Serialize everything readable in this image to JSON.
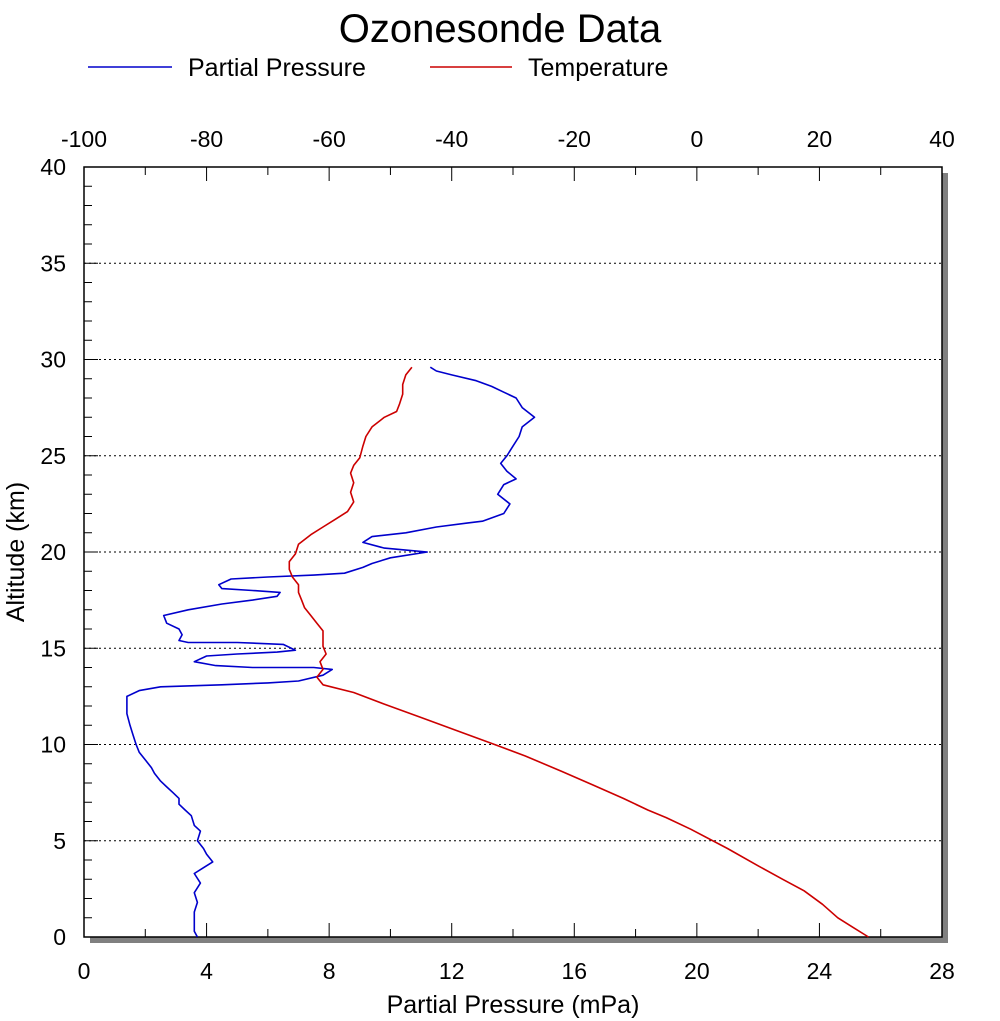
{
  "chart_data": {
    "type": "line",
    "title": "Ozonesonde Data",
    "xlabel": "Partial Pressure (mPa)",
    "ylabel": "Altitude (km)",
    "xlim": [
      0,
      28
    ],
    "x2lim": [
      -100,
      40
    ],
    "ylim": [
      0,
      40
    ],
    "x_ticks": [
      "0",
      "4",
      "8",
      "12",
      "16",
      "20",
      "24",
      "28"
    ],
    "x2_ticks": [
      "-100",
      "-80",
      "-60",
      "-40",
      "-20",
      "0",
      "20",
      "40"
    ],
    "y_ticks": [
      "0",
      "5",
      "10",
      "15",
      "20",
      "25",
      "30",
      "35",
      "40"
    ],
    "grid": "horizontal dotted at major y ticks",
    "legend_position": "top",
    "series": [
      {
        "name": "Partial Pressure",
        "axis": "bottom",
        "color": "#0000cc",
        "points": [
          [
            3.7,
            0
          ],
          [
            3.6,
            0.3
          ],
          [
            3.6,
            0.8
          ],
          [
            3.6,
            1.3
          ],
          [
            3.7,
            1.8
          ],
          [
            3.6,
            2.3
          ],
          [
            3.8,
            2.8
          ],
          [
            3.6,
            3.3
          ],
          [
            3.9,
            3.6
          ],
          [
            4.2,
            3.9
          ],
          [
            4.0,
            4.3
          ],
          [
            3.9,
            4.6
          ],
          [
            3.7,
            5.0
          ],
          [
            3.8,
            5.5
          ],
          [
            3.6,
            5.8
          ],
          [
            3.5,
            6.3
          ],
          [
            3.3,
            6.6
          ],
          [
            3.1,
            6.9
          ],
          [
            3.1,
            7.2
          ],
          [
            2.9,
            7.5
          ],
          [
            2.7,
            7.8
          ],
          [
            2.5,
            8.1
          ],
          [
            2.3,
            8.5
          ],
          [
            2.2,
            8.8
          ],
          [
            2.0,
            9.2
          ],
          [
            1.8,
            9.6
          ],
          [
            1.7,
            10.0
          ],
          [
            1.6,
            10.5
          ],
          [
            1.5,
            11.0
          ],
          [
            1.4,
            11.6
          ],
          [
            1.4,
            12.1
          ],
          [
            1.4,
            12.5
          ],
          [
            1.8,
            12.8
          ],
          [
            2.5,
            13.0
          ],
          [
            4.5,
            13.1
          ],
          [
            6.0,
            13.2
          ],
          [
            7.0,
            13.3
          ],
          [
            7.8,
            13.6
          ],
          [
            8.1,
            13.9
          ],
          [
            7.5,
            14.0
          ],
          [
            5.5,
            14.0
          ],
          [
            4.3,
            14.1
          ],
          [
            3.6,
            14.3
          ],
          [
            4.0,
            14.6
          ],
          [
            5.0,
            14.7
          ],
          [
            6.3,
            14.8
          ],
          [
            6.9,
            14.9
          ],
          [
            6.5,
            15.2
          ],
          [
            5.0,
            15.3
          ],
          [
            3.4,
            15.3
          ],
          [
            3.1,
            15.4
          ],
          [
            3.2,
            15.7
          ],
          [
            3.1,
            16.0
          ],
          [
            2.7,
            16.3
          ],
          [
            2.6,
            16.7
          ],
          [
            3.4,
            17.0
          ],
          [
            4.5,
            17.3
          ],
          [
            5.5,
            17.5
          ],
          [
            6.3,
            17.7
          ],
          [
            6.4,
            17.9
          ],
          [
            5.5,
            18.0
          ],
          [
            4.5,
            18.1
          ],
          [
            4.4,
            18.3
          ],
          [
            4.8,
            18.6
          ],
          [
            6.0,
            18.7
          ],
          [
            7.5,
            18.8
          ],
          [
            8.5,
            18.9
          ],
          [
            9.1,
            19.2
          ],
          [
            9.4,
            19.4
          ],
          [
            10.0,
            19.7
          ],
          [
            11.2,
            20.0
          ],
          [
            10.5,
            20.1
          ],
          [
            9.8,
            20.2
          ],
          [
            9.1,
            20.5
          ],
          [
            9.4,
            20.8
          ],
          [
            10.5,
            21.0
          ],
          [
            11.5,
            21.3
          ],
          [
            12.5,
            21.5
          ],
          [
            13.0,
            21.6
          ],
          [
            13.7,
            22.0
          ],
          [
            13.9,
            22.5
          ],
          [
            13.5,
            23.0
          ],
          [
            13.7,
            23.5
          ],
          [
            14.1,
            23.8
          ],
          [
            13.8,
            24.2
          ],
          [
            13.6,
            24.6
          ],
          [
            13.8,
            25.0
          ],
          [
            14.0,
            25.5
          ],
          [
            14.2,
            26.0
          ],
          [
            14.3,
            26.5
          ],
          [
            14.7,
            27.0
          ],
          [
            14.3,
            27.5
          ],
          [
            14.1,
            28.0
          ],
          [
            13.7,
            28.3
          ],
          [
            13.3,
            28.6
          ],
          [
            12.8,
            28.9
          ],
          [
            12.0,
            29.2
          ],
          [
            11.5,
            29.4
          ],
          [
            11.3,
            29.6
          ]
        ]
      },
      {
        "name": "Temperature",
        "axis": "top",
        "color": "#cc0000",
        "points": [
          [
            28.0,
            0
          ],
          [
            25.5,
            0.5
          ],
          [
            23.0,
            1.0
          ],
          [
            20.5,
            1.7
          ],
          [
            17.5,
            2.4
          ],
          [
            14.0,
            3.0
          ],
          [
            10.0,
            3.7
          ],
          [
            5.0,
            4.6
          ],
          [
            -1.0,
            5.6
          ],
          [
            -5.0,
            6.2
          ],
          [
            -8.0,
            6.6
          ],
          [
            -12.0,
            7.2
          ],
          [
            -17.0,
            7.9
          ],
          [
            -22.0,
            8.6
          ],
          [
            -28.0,
            9.4
          ],
          [
            -33.0,
            10.0
          ],
          [
            -39.0,
            10.7
          ],
          [
            -45.0,
            11.4
          ],
          [
            -51.0,
            12.1
          ],
          [
            -56.0,
            12.7
          ],
          [
            -61.0,
            13.1
          ],
          [
            -62.0,
            13.5
          ],
          [
            -61.0,
            13.9
          ],
          [
            -61.5,
            14.3
          ],
          [
            -60.5,
            14.7
          ],
          [
            -61.0,
            15.1
          ],
          [
            -61.0,
            15.5
          ],
          [
            -61.0,
            15.9
          ],
          [
            -62.0,
            16.3
          ],
          [
            -63.0,
            16.7
          ],
          [
            -64.0,
            17.1
          ],
          [
            -64.5,
            17.5
          ],
          [
            -65.0,
            17.9
          ],
          [
            -65.0,
            18.3
          ],
          [
            -66.0,
            18.7
          ],
          [
            -66.5,
            19.1
          ],
          [
            -66.5,
            19.5
          ],
          [
            -65.5,
            19.9
          ],
          [
            -65.0,
            20.4
          ],
          [
            -63.0,
            20.9
          ],
          [
            -61.0,
            21.3
          ],
          [
            -59.0,
            21.7
          ],
          [
            -57.0,
            22.1
          ],
          [
            -56.0,
            22.6
          ],
          [
            -56.5,
            23.1
          ],
          [
            -56.0,
            23.6
          ],
          [
            -56.5,
            24.1
          ],
          [
            -56.0,
            24.5
          ],
          [
            -55.0,
            24.9
          ],
          [
            -54.5,
            25.5
          ],
          [
            -54.0,
            26.0
          ],
          [
            -53.0,
            26.5
          ],
          [
            -51.0,
            27.0
          ],
          [
            -49.0,
            27.3
          ],
          [
            -48.5,
            27.7
          ],
          [
            -48.0,
            28.2
          ],
          [
            -48.0,
            28.7
          ],
          [
            -47.5,
            29.2
          ],
          [
            -46.5,
            29.6
          ]
        ]
      }
    ]
  }
}
